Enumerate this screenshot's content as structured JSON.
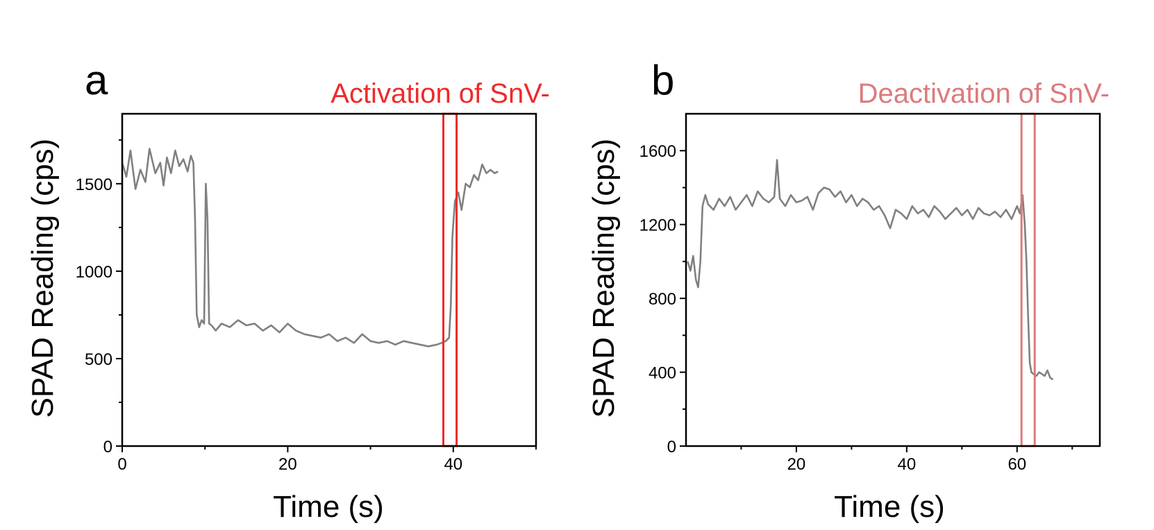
{
  "chart_data": [
    {
      "type": "line",
      "panel": "a",
      "annotation": "Activation of SnV-",
      "annotation_color": "#ee2a2a",
      "xlabel": "Time (s)",
      "ylabel": "SPAD Reading (cps)",
      "xlim": [
        0,
        50
      ],
      "ylim": [
        0,
        1900
      ],
      "x_major_ticks": [
        0,
        20,
        40
      ],
      "x_tick_labels": [
        "0",
        "20",
        "40"
      ],
      "x_minor_ticks": [
        10,
        30,
        50
      ],
      "y_major_ticks": [
        0,
        500,
        1000,
        1500
      ],
      "y_tick_labels": [
        "0",
        "500",
        "1000",
        "1500"
      ],
      "y_minor_ticks": [
        250,
        750,
        1250,
        1750
      ],
      "highlight": {
        "x0": 38.8,
        "x1": 40.4
      },
      "series_color": "#808080",
      "x": [
        0.0,
        0.5,
        1.0,
        1.6,
        2.2,
        2.8,
        3.3,
        4.0,
        4.6,
        5.0,
        5.4,
        5.9,
        6.4,
        6.9,
        7.4,
        7.9,
        8.3,
        8.6,
        8.8,
        9.0,
        9.3,
        9.6,
        9.9,
        10.1,
        10.3,
        10.5,
        10.8,
        11.3,
        12.0,
        13.0,
        14.0,
        15.0,
        16.0,
        17.0,
        18.0,
        19.0,
        20.0,
        21.0,
        22.0,
        23.0,
        24.0,
        25.0,
        26.0,
        27.0,
        28.0,
        29.0,
        30.0,
        31.0,
        32.0,
        33.0,
        34.0,
        35.0,
        36.0,
        37.0,
        38.0,
        38.6,
        39.1,
        39.5,
        39.7,
        39.9,
        40.2,
        40.6,
        41.0,
        41.5,
        42.0,
        42.5,
        43.0,
        43.5,
        44.0,
        44.5,
        45.0,
        45.4
      ],
      "values": [
        1620,
        1540,
        1690,
        1470,
        1580,
        1510,
        1700,
        1560,
        1620,
        1490,
        1650,
        1560,
        1690,
        1600,
        1640,
        1570,
        1660,
        1620,
        1300,
        750,
        680,
        720,
        700,
        1500,
        1300,
        700,
        690,
        660,
        700,
        680,
        720,
        690,
        700,
        660,
        690,
        650,
        700,
        660,
        640,
        630,
        620,
        640,
        600,
        620,
        590,
        640,
        600,
        590,
        600,
        580,
        600,
        590,
        580,
        570,
        580,
        590,
        600,
        620,
        800,
        1200,
        1400,
        1450,
        1350,
        1500,
        1480,
        1550,
        1520,
        1610,
        1560,
        1580,
        1560,
        1570
      ]
    },
    {
      "type": "line",
      "panel": "b",
      "annotation": "Deactivation of SnV-",
      "annotation_color": "#dc7a7c",
      "xlabel": "Time (s)",
      "ylabel": "SPAD Reading (cps)",
      "xlim": [
        0,
        75
      ],
      "ylim": [
        0,
        1800
      ],
      "x_major_ticks": [
        20,
        40,
        60
      ],
      "x_tick_labels": [
        "20",
        "40",
        "60"
      ],
      "x_minor_ticks": [
        10,
        30,
        50,
        70
      ],
      "y_major_ticks": [
        0,
        400,
        800,
        1200,
        1600
      ],
      "y_tick_labels": [
        "0",
        "400",
        "800",
        "1200",
        "1600"
      ],
      "y_minor_ticks": [
        200,
        600,
        1000,
        1400
      ],
      "highlight": {
        "x0": 60.8,
        "x1": 63.2
      },
      "series_color": "#808080",
      "x": [
        0.3,
        0.8,
        1.3,
        1.8,
        2.2,
        2.6,
        3.0,
        3.5,
        4.0,
        5.0,
        6.0,
        7.0,
        8.0,
        9.0,
        10.0,
        11.0,
        12.0,
        13.0,
        14.0,
        15.0,
        16.0,
        16.5,
        17.0,
        18.0,
        19.0,
        20.0,
        21.0,
        22.0,
        23.0,
        24.0,
        25.0,
        26.0,
        27.0,
        28.0,
        29.0,
        30.0,
        31.0,
        32.0,
        33.0,
        34.0,
        35.0,
        36.0,
        37.0,
        38.0,
        39.0,
        40.0,
        41.0,
        42.0,
        43.0,
        44.0,
        45.0,
        46.0,
        47.0,
        48.0,
        49.0,
        50.0,
        51.0,
        52.0,
        53.0,
        54.0,
        55.0,
        56.0,
        57.0,
        58.0,
        59.0,
        60.0,
        60.5,
        61.0,
        61.4,
        61.7,
        62.0,
        62.3,
        62.6,
        63.0,
        63.5,
        64.0,
        64.5,
        65.0,
        65.5,
        66.0,
        66.5
      ],
      "values": [
        1000,
        950,
        1030,
        900,
        860,
        1000,
        1300,
        1360,
        1310,
        1280,
        1340,
        1300,
        1350,
        1280,
        1320,
        1360,
        1300,
        1380,
        1340,
        1320,
        1350,
        1550,
        1340,
        1300,
        1360,
        1320,
        1330,
        1350,
        1280,
        1370,
        1400,
        1390,
        1350,
        1380,
        1320,
        1360,
        1300,
        1340,
        1320,
        1280,
        1300,
        1250,
        1180,
        1280,
        1260,
        1230,
        1300,
        1260,
        1280,
        1240,
        1300,
        1270,
        1230,
        1260,
        1290,
        1250,
        1280,
        1230,
        1290,
        1260,
        1250,
        1270,
        1240,
        1280,
        1230,
        1300,
        1260,
        1360,
        1200,
        1000,
        700,
        450,
        400,
        390,
        380,
        400,
        390,
        380,
        410,
        370,
        360
      ]
    }
  ]
}
